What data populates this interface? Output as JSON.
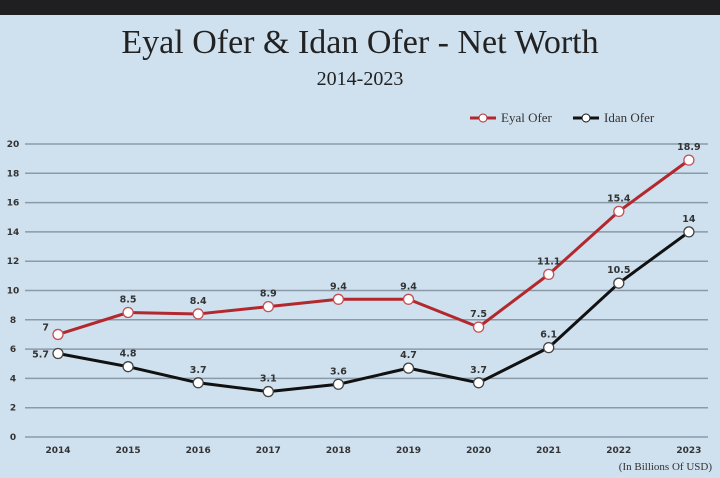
{
  "chart_data": {
    "type": "line",
    "title": "Eyal Ofer & Idan Ofer - Net Worth",
    "subtitle": "2014-2023",
    "xlabel": "",
    "ylabel": "",
    "unit_note": "(In Billions Of USD)",
    "categories": [
      "2014",
      "2015",
      "2016",
      "2017",
      "2018",
      "2019",
      "2020",
      "2021",
      "2022",
      "2023"
    ],
    "yticks": [
      0,
      2,
      4,
      6,
      8,
      10,
      12,
      14,
      16,
      18,
      20
    ],
    "ylim": [
      0,
      20
    ],
    "grid": "horizontal",
    "legend_position": "top-right",
    "series": [
      {
        "name": "Eyal Ofer",
        "color": "#b3282d",
        "values": [
          7,
          8.5,
          8.4,
          8.9,
          9.4,
          9.4,
          7.5,
          11.1,
          15.4,
          18.9
        ],
        "labels": [
          "7",
          "8.5",
          "8.4",
          "8.9",
          "9.4",
          "9.4",
          "7.5",
          "11.1",
          "15.4",
          "18.9"
        ]
      },
      {
        "name": "Idan Ofer",
        "color": "#111111",
        "values": [
          5.7,
          4.8,
          3.7,
          3.1,
          3.6,
          4.7,
          3.7,
          6.1,
          10.5,
          14
        ],
        "labels": [
          "5.7",
          "4.8",
          "3.7",
          "3.1",
          "3.6",
          "4.7",
          "3.7",
          "6.1",
          "10.5",
          "14"
        ]
      }
    ]
  }
}
